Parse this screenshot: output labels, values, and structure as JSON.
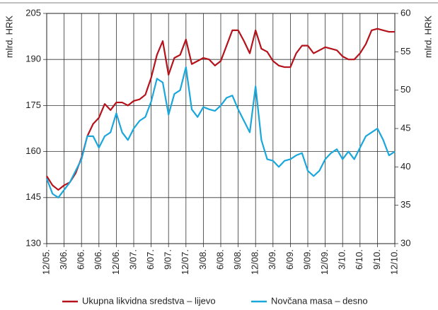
{
  "chart_data": {
    "type": "line",
    "categories": [
      "12/05.",
      null,
      null,
      "3/06.",
      null,
      null,
      "6/06.",
      null,
      null,
      "9/06.",
      null,
      null,
      "12/06.",
      null,
      null,
      "3/07.",
      null,
      null,
      "6/07.",
      null,
      null,
      "9/07.",
      null,
      null,
      "12/07.",
      null,
      null,
      "3/08.",
      null,
      null,
      "6/08.",
      null,
      null,
      "9/08.",
      null,
      null,
      "12/08.",
      null,
      null,
      "3/09.",
      null,
      null,
      "6/09.",
      null,
      null,
      "9/09.",
      null,
      null,
      "12/09.",
      null,
      null,
      "3/10.",
      null,
      null,
      "6/10.",
      null,
      null,
      "9/10.",
      null,
      null,
      "12/10."
    ],
    "series": [
      {
        "name": "Ukupna likvidna sredstva – lijevo",
        "color": "#b5121b",
        "axis": "y",
        "values": [
          152,
          149,
          147.5,
          149,
          150,
          153,
          158,
          165,
          169,
          171,
          175.5,
          173.5,
          176,
          176,
          175,
          176.5,
          177,
          178.5,
          184,
          191.5,
          196,
          185,
          190.5,
          191.5,
          196.5,
          188.5,
          189.5,
          190.5,
          190,
          188,
          189.5,
          194.5,
          199.5,
          199.5,
          196,
          192,
          199.5,
          193.5,
          192.5,
          189.5,
          188,
          187.5,
          187.5,
          192,
          194.5,
          194.5,
          192,
          193,
          194,
          193.5,
          193,
          191,
          190,
          190,
          192,
          195,
          199.5,
          200,
          199.5,
          199,
          199
        ]
      },
      {
        "name": "Novčana masa – desno",
        "color": "#1aa7dc",
        "axis": "y2",
        "values": [
          38.5,
          36.5,
          36,
          37,
          38,
          39.5,
          41,
          44,
          44,
          42.5,
          44,
          44.5,
          47,
          44.5,
          43.5,
          45,
          46,
          46.5,
          48.5,
          51.5,
          51,
          46.8,
          49.5,
          50,
          53,
          47.5,
          46.5,
          47.8,
          47.5,
          47.3,
          48,
          49,
          49.3,
          47.5,
          46,
          44.5,
          50.5,
          43.5,
          41,
          40.8,
          40,
          40.8,
          41,
          41.5,
          41.8,
          39.5,
          38.8,
          39.5,
          41,
          41.8,
          42.3,
          41,
          42,
          41,
          42.5,
          44,
          44.5,
          45,
          43.5,
          41.5,
          42
        ]
      }
    ],
    "ylabel": "mlrd. HRK",
    "y2label": "mlrd. HRK",
    "ylim": [
      130,
      205
    ],
    "yticks": [
      130,
      145,
      160,
      175,
      190,
      205
    ],
    "y2lim": [
      30,
      60
    ],
    "y2ticks": [
      30,
      35,
      40,
      45,
      50,
      55,
      60
    ],
    "grid": true
  }
}
